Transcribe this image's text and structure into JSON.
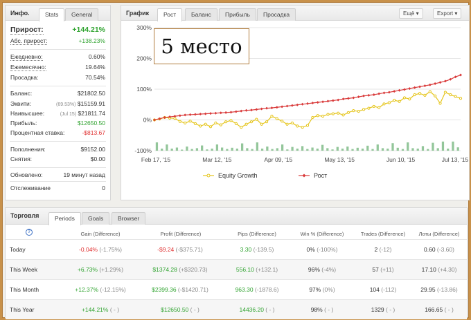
{
  "left_panel": {
    "title": "Инфо.",
    "tabs": [
      "Stats",
      "General"
    ],
    "gain_label": "Прирост:",
    "gain_value": "+144.21%",
    "abs_gain_label": "Абс. прирост:",
    "abs_gain_value": "+138.23%",
    "daily_label": "Ежедневно:",
    "daily_value": "0.60%",
    "monthly_label": "Ежемесячно:",
    "monthly_value": "19.64%",
    "drawdown_label": "Просадка:",
    "drawdown_value": "70.54%",
    "balance_label": "Баланс:",
    "balance_value": "$21802.50",
    "equity_label": "Эквити:",
    "equity_pct": "(69.53%)",
    "equity_value": "$15159.91",
    "highest_label": "Наивысшее:",
    "highest_date": "(Jul 15)",
    "highest_value": "$21811.74",
    "profit_label": "Прибыль:",
    "profit_value": "$12650.50",
    "interest_label": "Процентная ставка:",
    "interest_value": "-$813.67",
    "deposits_label": "Пополнения:",
    "deposits_value": "$9152.00",
    "withdrawals_label": "Снятия:",
    "withdrawals_value": "$0.00",
    "updated_label": "Обновлено:",
    "updated_value": "19 минут назад",
    "tracking_label": "Отслеживание",
    "tracking_value": "0"
  },
  "chart_panel": {
    "title": "График",
    "tabs": [
      "Рост",
      "Баланс",
      "Прибыль",
      "Просадка"
    ],
    "btn_esche": "Ещё",
    "btn_export": "Export",
    "overlay_text": "5 место"
  },
  "chart_data": {
    "type": "line",
    "y_ticks": [
      "300%",
      "200%",
      "100%",
      "0%",
      "-100%"
    ],
    "ylim": [
      -100,
      300
    ],
    "x_ticks": [
      "Feb 17, '15",
      "Mar 12, '15",
      "Apr 09, '15",
      "May 13, '15",
      "Jun 10, '15",
      "Jul 13, '15"
    ],
    "series": [
      {
        "name": "Equity Growth",
        "color": "#e5c51a",
        "values": [
          0,
          3,
          8,
          6,
          5,
          -5,
          -10,
          -4,
          -12,
          -20,
          -14,
          -22,
          -10,
          -16,
          -6,
          -2,
          -12,
          -24,
          -14,
          -6,
          2,
          -14,
          -6,
          12,
          4,
          -4,
          -14,
          -10,
          -20,
          -24,
          -18,
          8,
          14,
          12,
          18,
          20,
          22,
          16,
          24,
          30,
          28,
          34,
          38,
          44,
          40,
          52,
          56,
          64,
          60,
          72,
          68,
          82,
          86,
          80,
          92,
          78,
          54,
          90,
          82,
          76,
          70
        ]
      },
      {
        "name": "Рост",
        "color": "#d93a3a",
        "values": [
          0,
          4,
          8,
          10,
          12,
          14,
          16,
          17,
          18,
          19,
          20,
          21,
          22,
          23,
          24,
          25,
          27,
          29,
          31,
          32,
          34,
          36,
          38,
          39,
          41,
          43,
          45,
          47,
          49,
          51,
          53,
          55,
          57,
          59,
          61,
          63,
          65,
          68,
          70,
          72,
          75,
          78,
          80,
          82,
          85,
          88,
          90,
          93,
          96,
          99,
          102,
          105,
          108,
          111,
          114,
          118,
          122,
          126,
          132,
          140,
          146
        ]
      },
      {
        "name": "bars",
        "color": "#93c69a",
        "values": [
          40,
          10,
          30,
          10,
          15,
          5,
          20,
          8,
          12,
          25,
          6,
          10,
          30,
          15,
          8,
          14,
          10,
          35,
          12,
          8,
          40,
          10,
          20,
          8,
          12,
          30,
          6,
          18,
          10,
          22,
          8,
          15,
          10,
          28,
          12,
          6,
          18,
          10,
          20,
          8,
          14,
          10,
          24,
          8,
          30,
          12,
          10,
          36,
          14,
          8,
          40,
          12,
          10,
          22,
          8,
          38,
          12,
          44,
          10,
          44,
          16
        ]
      }
    ],
    "legend": [
      "Equity Growth",
      "Рост"
    ]
  },
  "bottom_panel": {
    "title": "Торговля",
    "tabs": [
      "Periods",
      "Goals",
      "Browser"
    ],
    "help": "?",
    "headers": [
      "Gain (Difference)",
      "Profit (Difference)",
      "Pips (Difference)",
      "Win % (Difference)",
      "Trades (Difference)",
      "Лоты (Difference)"
    ],
    "rows": [
      {
        "label": "Today",
        "gain": "-0.04%",
        "gain_d": "(-1.75%)",
        "profit": "-$9.24",
        "profit_d": "(-$375.71)",
        "pips": "3.30",
        "pips_d": "(-139.5)",
        "win": "0%",
        "win_d": "(-100%)",
        "trades": "2",
        "trades_d": "(-12)",
        "lots": "0.60",
        "lots_d": "(-3.60)"
      },
      {
        "label": "This Week",
        "gain": "+6.73%",
        "gain_d": "(+1.29%)",
        "profit": "$1374.28",
        "profit_d": "(+$320.73)",
        "pips": "556.10",
        "pips_d": "(+132.1)",
        "win": "96%",
        "win_d": "(-4%)",
        "trades": "57",
        "trades_d": "(+11)",
        "lots": "17.10",
        "lots_d": "(+4.30)"
      },
      {
        "label": "This Month",
        "gain": "+12.37%",
        "gain_d": "(-12.15%)",
        "profit": "$2399.36",
        "profit_d": "(-$1420.71)",
        "pips": "963.30",
        "pips_d": "(-1878.6)",
        "win": "97%",
        "win_d": "(0%)",
        "trades": "104",
        "trades_d": "(-112)",
        "lots": "29.95",
        "lots_d": "(-13.86)"
      },
      {
        "label": "This Year",
        "gain": "+144.21%",
        "gain_d": "( - )",
        "profit": "$12650.50",
        "profit_d": "( - )",
        "pips": "14436.20",
        "pips_d": "( - )",
        "win": "98%",
        "win_d": "( - )",
        "trades": "1329",
        "trades_d": "( - )",
        "lots": "166.65",
        "lots_d": "( - )"
      }
    ]
  }
}
